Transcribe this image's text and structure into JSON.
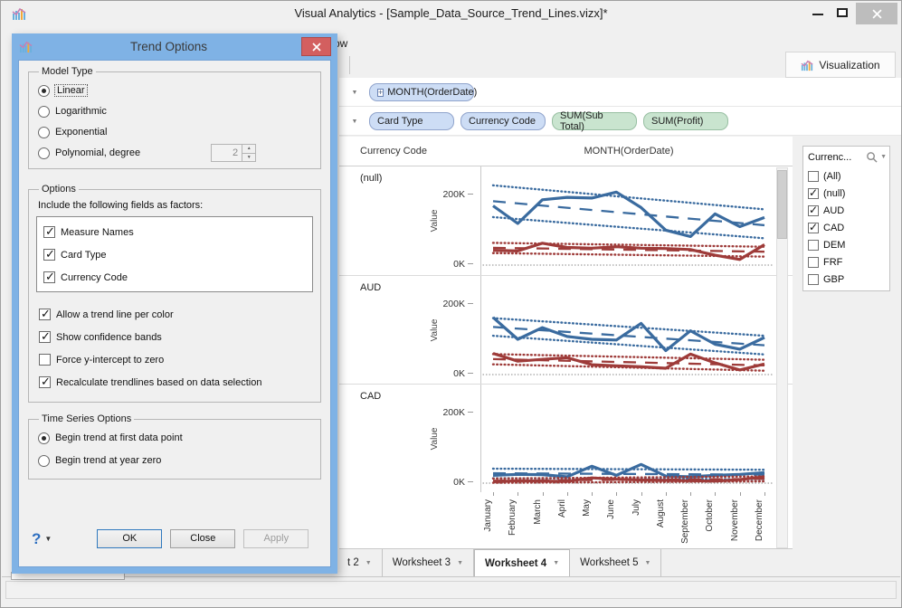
{
  "window": {
    "title": "Visual Analytics - [Sample_Data_Source_Trend_Lines.vizx]*",
    "menu_fragment": "ow",
    "viz_tab_label": "Visualization"
  },
  "colors": {
    "dialog_blue": "#7fb2e5",
    "close_red": "#d35f5f",
    "line_blue": "#3a6b9f",
    "line_red": "#9e3b39",
    "pill_blue": "#cdddf5",
    "pill_green": "#c9e4cf"
  },
  "shelves": {
    "columns_pill": "MONTH(OrderDate)",
    "expand_glyph": "+",
    "rows": [
      {
        "label": "Card Type",
        "kind": "dimension"
      },
      {
        "label": "Currency Code",
        "kind": "dimension"
      },
      {
        "label": "SUM(Sub Total)",
        "kind": "measure"
      },
      {
        "label": "SUM(Profit)",
        "kind": "measure"
      }
    ]
  },
  "chart_data": {
    "type": "line",
    "col_header": "Currency Code",
    "x_header": "MONTH(OrderDate)",
    "ylabel": "Value",
    "yticks": [
      "200K",
      "0K"
    ],
    "ylim_k": [
      0,
      280
    ],
    "legend_position": "none",
    "grid": "zero-line-only",
    "categories": [
      "January",
      "February",
      "March",
      "April",
      "May",
      "June",
      "July",
      "August",
      "September",
      "October",
      "November",
      "December"
    ],
    "panels": [
      {
        "label": "(null)",
        "series": [
          {
            "name": "SUM(Sub Total)",
            "color": "#3a6b9f",
            "values_k": [
              168,
              118,
              185,
              192,
              190,
              207,
              163,
              99,
              81,
              145,
              109,
              135
            ],
            "trend_k": [
              181,
              113
            ],
            "band_upper_k": [
              226,
              158
            ],
            "band_lower_k": [
              136,
              76
            ]
          },
          {
            "name": "SUM(Profit)",
            "color": "#9e3b39",
            "values_k": [
              42,
              40,
              62,
              50,
              48,
              52,
              48,
              47,
              44,
              28,
              16,
              58
            ],
            "trend_k": [
              49,
              38
            ],
            "band_upper_k": [
              63,
              52
            ],
            "band_lower_k": [
              34,
              24
            ]
          }
        ]
      },
      {
        "label": "AUD",
        "series": [
          {
            "name": "SUM(Sub Total)",
            "color": "#3a6b9f",
            "values_k": [
              162,
              100,
              133,
              108,
              100,
              98,
              145,
              68,
              124,
              86,
              72,
              105
            ],
            "trend_k": [
              135,
              83
            ],
            "band_upper_k": [
              160,
              110
            ],
            "band_lower_k": [
              110,
              57
            ]
          },
          {
            "name": "SUM(Profit)",
            "color": "#9e3b39",
            "values_k": [
              60,
              38,
              43,
              48,
              28,
              25,
              22,
              18,
              58,
              33,
              13,
              30
            ],
            "trend_k": [
              44,
              26
            ],
            "band_upper_k": [
              58,
              42
            ],
            "band_lower_k": [
              29,
              11
            ]
          }
        ]
      },
      {
        "label": "CAD",
        "series": [
          {
            "name": "SUM(Sub Total)",
            "color": "#3a6b9f",
            "values_k": [
              22,
              25,
              24,
              18,
              48,
              22,
              53,
              20,
              18,
              22,
              25,
              30
            ],
            "trend_k": [
              28,
              24
            ],
            "band_upper_k": [
              41,
              38
            ],
            "band_lower_k": [
              14,
              11
            ]
          },
          {
            "name": "SUM(Profit)",
            "color": "#9e3b39",
            "values_k": [
              4,
              7,
              6,
              5,
              15,
              11,
              9,
              8,
              7,
              6,
              10,
              18
            ],
            "trend_k": [
              7,
              12
            ],
            "band_upper_k": [
              13,
              19
            ],
            "band_lower_k": [
              1,
              5
            ]
          }
        ]
      }
    ]
  },
  "filter_panel": {
    "title": "Currenc...",
    "items": [
      {
        "label": "(All)",
        "checked": "false"
      },
      {
        "label": "(null)",
        "checked": "true"
      },
      {
        "label": "AUD",
        "checked": "true"
      },
      {
        "label": "CAD",
        "checked": "true"
      },
      {
        "label": "DEM",
        "checked": "false"
      },
      {
        "label": "FRF",
        "checked": "false"
      },
      {
        "label": "GBP",
        "checked": "false"
      }
    ]
  },
  "worksheet_tabs": [
    {
      "label": "t 2",
      "active": "false"
    },
    {
      "label": "Worksheet 3",
      "active": "false"
    },
    {
      "label": "Worksheet 4",
      "active": "true"
    },
    {
      "label": "Worksheet 5",
      "active": "false"
    }
  ],
  "dialog": {
    "title": "Trend Options",
    "model_type": {
      "legend": "Model Type",
      "options": [
        {
          "label": "Linear",
          "selected": "true"
        },
        {
          "label": "Logarithmic",
          "selected": "false"
        },
        {
          "label": "Exponential",
          "selected": "false"
        },
        {
          "label": "Polynomial, degree",
          "selected": "false"
        }
      ],
      "degree_value": "2"
    },
    "options": {
      "legend": "Options",
      "factors_label": "Include the following fields as factors:",
      "factors": [
        {
          "label": "Measure Names",
          "checked": "true"
        },
        {
          "label": "Card Type",
          "checked": "true"
        },
        {
          "label": "Currency Code",
          "checked": "true"
        }
      ],
      "checks": [
        {
          "label": "Allow a trend line per color",
          "checked": "true"
        },
        {
          "label": "Show confidence bands",
          "checked": "true"
        },
        {
          "label": "Force y-intercept to zero",
          "checked": "false"
        },
        {
          "label": "Recalculate trendlines based on data selection",
          "checked": "true"
        }
      ]
    },
    "time_series": {
      "legend": "Time Series Options",
      "options": [
        {
          "label": "Begin trend at first data point",
          "selected": "true"
        },
        {
          "label": "Begin trend at year zero",
          "selected": "false"
        }
      ]
    },
    "footer": {
      "help": "?",
      "ok": "OK",
      "close": "Close",
      "apply": "Apply"
    }
  }
}
